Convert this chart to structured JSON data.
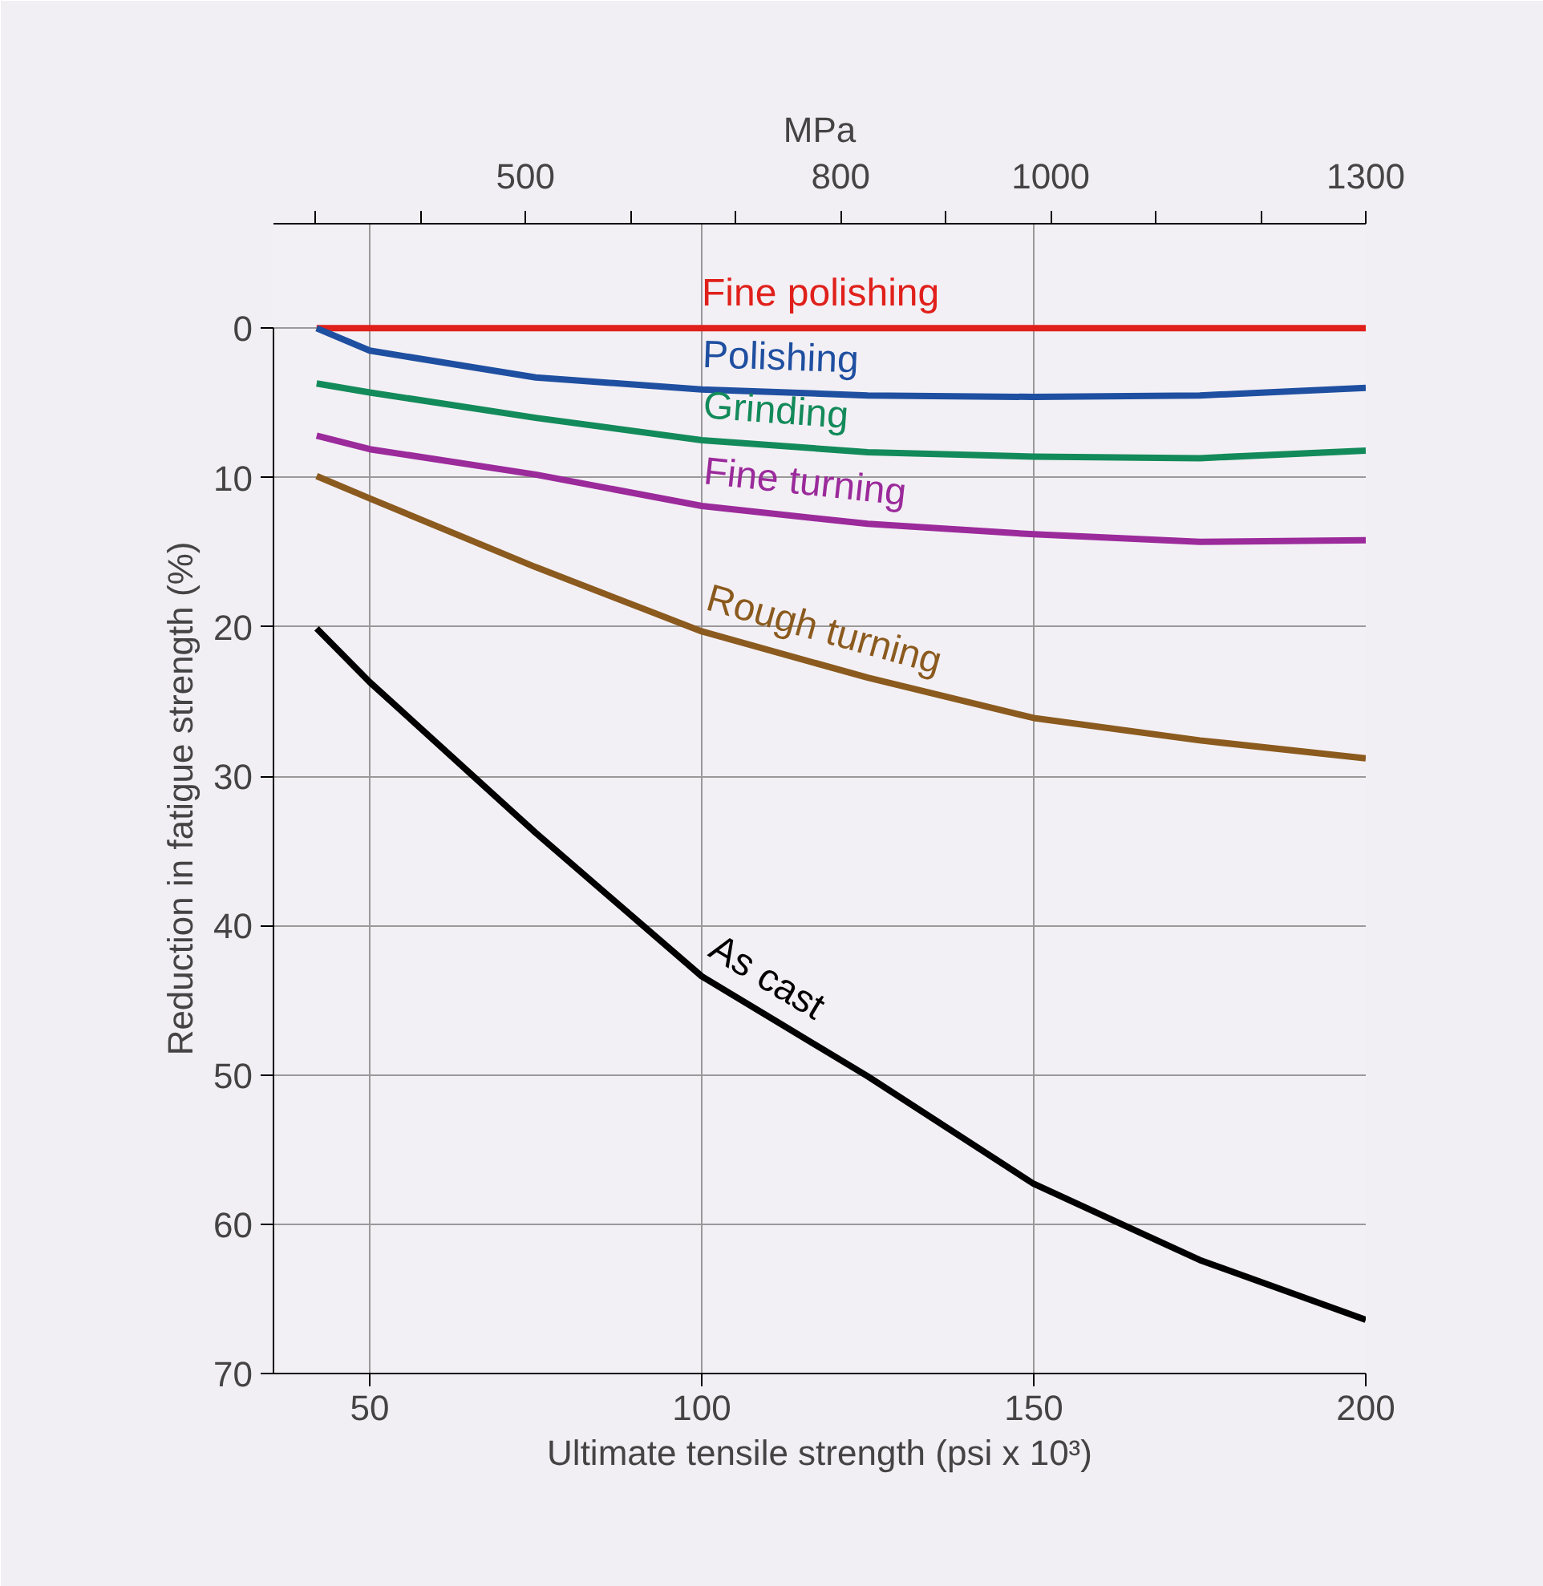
{
  "chart_data": {
    "type": "line",
    "xlabel": "Ultimate tensile strength (psi x 10³)",
    "ylabel": "Reduction in fatigue strength (%)",
    "x2label": "MPa",
    "xlim": [
      35.5,
      200
    ],
    "xticks": [
      50,
      100,
      150,
      200
    ],
    "ylim": [
      70,
      -7
    ],
    "yticks": [
      0,
      10,
      20,
      30,
      40,
      50,
      60,
      70
    ],
    "x2lim": [
      260,
      1300
    ],
    "x2ticks": [
      {
        "value": 300,
        "label": null
      },
      {
        "value": 400,
        "label": null
      },
      500,
      {
        "value": 600,
        "label": null
      },
      {
        "value": 700,
        "label": null
      },
      800,
      {
        "value": 900,
        "label": null
      },
      1000,
      {
        "value": 1100,
        "label": null
      },
      {
        "value": 1200,
        "label": null
      },
      1300
    ],
    "grid": true,
    "marker": "none",
    "line_style": "solid",
    "x": [
      42,
      50,
      75,
      100,
      125,
      150,
      175,
      200
    ],
    "series": [
      {
        "name": "Fine polishing",
        "color": "#e0201b",
        "values": [
          0,
          0,
          0,
          0,
          0,
          0,
          0,
          0
        ]
      },
      {
        "name": "Polishing",
        "color": "#1f4fa0",
        "values": [
          0,
          1.5,
          3.3,
          4.1,
          4.5,
          4.6,
          4.5,
          4.0
        ]
      },
      {
        "name": "Grinding",
        "color": "#138a5a",
        "values": [
          3.7,
          4.3,
          6.0,
          7.5,
          8.3,
          8.6,
          8.7,
          8.2
        ]
      },
      {
        "name": "Fine turning",
        "color": "#9b2a9b",
        "values": [
          7.2,
          8.1,
          9.8,
          11.9,
          13.1,
          13.8,
          14.3,
          14.2
        ]
      },
      {
        "name": "Rough turning",
        "color": "#8b5a1e",
        "values": [
          9.9,
          11.4,
          16.0,
          20.3,
          23.4,
          26.1,
          27.6,
          28.8
        ]
      },
      {
        "name": "As cast",
        "color": "#000000",
        "values": [
          20.1,
          23.7,
          33.8,
          43.4,
          50.1,
          57.3,
          62.4,
          66.4
        ]
      }
    ]
  }
}
